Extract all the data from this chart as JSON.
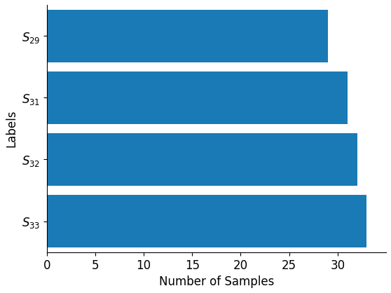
{
  "categories": [
    "$S_{33}$",
    "$S_{32}$",
    "$S_{31}$",
    "$S_{29}$"
  ],
  "values": [
    33,
    32,
    31,
    29
  ],
  "bar_color": "#1a7ab5",
  "xlabel": "Number of Samples",
  "ylabel": "Labels",
  "xlim": [
    0,
    35
  ],
  "xticks": [
    0,
    5,
    10,
    15,
    20,
    25,
    30
  ],
  "background_color": "#ffffff",
  "bar_height": 0.85,
  "figsize": [
    5.58,
    4.18
  ],
  "dpi": 100,
  "ylabel_fontsize": 12,
  "xlabel_fontsize": 12,
  "tick_fontsize": 12
}
